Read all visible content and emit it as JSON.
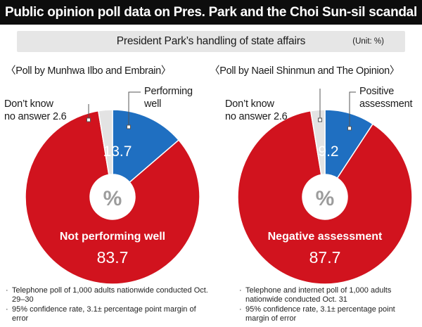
{
  "header": {
    "title": "Public opinion poll data on Pres. Park and the Choi Sun-sil scandal",
    "subtitle": "President Park’s handling of state affairs",
    "unit": "(Unit: %)"
  },
  "colors": {
    "blue": "#1f6fc1",
    "red": "#d1131e",
    "grey": "#e3e3e3"
  },
  "chart_data": [
    {
      "type": "pie",
      "title": "〈Poll by Munhwa Ilbo and Embrain〉",
      "center_label": "%",
      "slices": [
        {
          "label": "Performing\nwell",
          "value": 13.7,
          "color": "#1f6fc1"
        },
        {
          "label": "Not performing well",
          "value": 83.7,
          "color": "#d1131e"
        },
        {
          "label": "Don’t know\nno answer",
          "value": 2.6,
          "color": "#e3e3e3"
        }
      ],
      "notes": [
        "Telephone poll of 1,000 adults nationwide conducted Oct. 29–30",
        "95% confidence rate, 3.1± percentage point margin of error"
      ]
    },
    {
      "type": "pie",
      "title": "〈Poll by Naeil Shinmun and The Opinion〉",
      "center_label": "%",
      "slices": [
        {
          "label": "Positive\nassessment",
          "value": 9.2,
          "color": "#1f6fc1"
        },
        {
          "label": "Negative assessment",
          "value": 87.7,
          "color": "#d1131e"
        },
        {
          "label": "Don’t know\nno answer",
          "value": 2.6,
          "color": "#e3e3e3"
        }
      ],
      "notes": [
        "Telephone and internet poll of 1,000 adults nationwide conducted Oct. 31",
        "95% confidence rate, 3.1± percentage point margin of error"
      ]
    }
  ]
}
